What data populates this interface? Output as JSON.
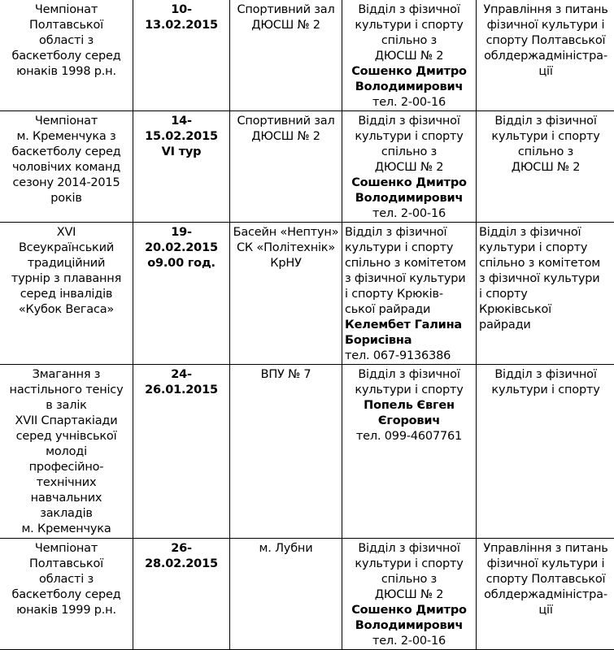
{
  "rows": [
    {
      "event": [
        {
          "t": "Чемпіонат"
        },
        {
          "t": "Полтавської"
        },
        {
          "t": "області з"
        },
        {
          "t": "баскетболу серед"
        },
        {
          "t": "юнаків 1998 р.н."
        }
      ],
      "date": [
        {
          "t": "10-",
          "b": true
        },
        {
          "t": "13.02.2015",
          "b": true
        }
      ],
      "place": [
        {
          "t": "Спортивний зал"
        },
        {
          "t": "ДЮСШ № 2"
        }
      ],
      "responsible": [
        {
          "t": "Відділ з фізичної"
        },
        {
          "t": "культури і спорту"
        },
        {
          "t": "спільно з"
        },
        {
          "t": "ДЮСШ № 2"
        },
        {
          "t": "Сошенко Дмитро",
          "b": true
        },
        {
          "t": "Володимирович",
          "b": true
        },
        {
          "t": "тел. 2-00-16"
        }
      ],
      "organizer": [
        {
          "t": "Управління з питань"
        },
        {
          "t": "фізичної культури і"
        },
        {
          "t": "спорту Полтавської"
        },
        {
          "t": "облдержадміністра-"
        },
        {
          "t": "ції"
        }
      ],
      "align": "c"
    },
    {
      "event": [
        {
          "t": "Чемпіонат"
        },
        {
          "t": "м. Кременчука з"
        },
        {
          "t": "баскетболу серед"
        },
        {
          "t": "чоловічих команд"
        },
        {
          "t": "сезону 2014-2015"
        },
        {
          "t": "років"
        }
      ],
      "date": [
        {
          "t": "14-",
          "b": true
        },
        {
          "t": "15.02.2015",
          "b": true
        },
        {
          "t": "VI тур",
          "b": true
        }
      ],
      "place": [
        {
          "t": "Спортивний зал"
        },
        {
          "t": "ДЮСШ № 2"
        }
      ],
      "responsible": [
        {
          "t": "Відділ з фізичної"
        },
        {
          "t": "культури і спорту"
        },
        {
          "t": "спільно з"
        },
        {
          "t": "ДЮСШ № 2"
        },
        {
          "t": "Сошенко Дмитро",
          "b": true
        },
        {
          "t": "Володимирович",
          "b": true
        },
        {
          "t": "тел. 2-00-16"
        }
      ],
      "organizer": [
        {
          "t": "Відділ з фізичної"
        },
        {
          "t": "культури і спорту"
        },
        {
          "t": "спільно з"
        },
        {
          "t": "ДЮСШ № 2"
        }
      ],
      "align": "c"
    },
    {
      "event": [
        {
          "t": "XVI"
        },
        {
          "t": "Всеукраїнський"
        },
        {
          "t": "традиційний"
        },
        {
          "t": "турнір з плавання"
        },
        {
          "t": "серед інвалідів"
        },
        {
          "t": "«Кубок Вегаса»"
        }
      ],
      "date": [
        {
          "t": "19-",
          "b": true
        },
        {
          "t": "20.02.2015",
          "b": true
        },
        {
          "t": "о9.00 год.",
          "b": true
        }
      ],
      "place": [
        {
          "t": "Басейн «Нептун»"
        },
        {
          "t": "СК «Політехнік»"
        },
        {
          "t": "КрНУ"
        }
      ],
      "responsible": [
        {
          "t": "Відділ з фізичної"
        },
        {
          "t": "культури і спорту"
        },
        {
          "t": "спільно з комітетом"
        },
        {
          "t": "з фізичної культури"
        },
        {
          "t": "і спорту Крюків-"
        },
        {
          "t": "ської райради"
        },
        {
          "t": "Келембет Галина",
          "b": true
        },
        {
          "t": "Борисівна",
          "b": true
        },
        {
          "t": "тел. 067-9136386"
        }
      ],
      "organizer": [
        {
          "t": "Відділ з фізичної"
        },
        {
          "t": "культури і спорту"
        },
        {
          "t": "спільно з комітетом"
        },
        {
          "t": "з фізичної культури"
        },
        {
          "t": "і спорту"
        },
        {
          "t": "Крюківської"
        },
        {
          "t": "райради"
        }
      ],
      "align": "l"
    },
    {
      "event": [
        {
          "t": "Змагання з"
        },
        {
          "t": "настільного тенісу"
        },
        {
          "t": "в залік"
        },
        {
          "t": "XVII Спартакіади"
        },
        {
          "t": "серед учнівської"
        },
        {
          "t": "молоді"
        },
        {
          "t": "професійно-"
        },
        {
          "t": "технічних"
        },
        {
          "t": "навчальних"
        },
        {
          "t": "закладів"
        },
        {
          "t": "м. Кременчука"
        }
      ],
      "date": [
        {
          "t": "24-",
          "b": true
        },
        {
          "t": "26.01.2015",
          "b": true
        }
      ],
      "place": [
        {
          "t": "ВПУ № 7"
        }
      ],
      "responsible": [
        {
          "t": "Відділ з фізичної"
        },
        {
          "t": "культури і спорту"
        },
        {
          "t": "Попель Євген",
          "b": true
        },
        {
          "t": "Єгорович",
          "b": true
        },
        {
          "t": "тел. 099-4607761"
        }
      ],
      "organizer": [
        {
          "t": "Відділ з фізичної"
        },
        {
          "t": "культури і спорту"
        }
      ],
      "align": "c"
    },
    {
      "event": [
        {
          "t": "Чемпіонат"
        },
        {
          "t": "Полтавської"
        },
        {
          "t": "області з"
        },
        {
          "t": "баскетболу серед"
        },
        {
          "t": "юнаків 1999 р.н."
        }
      ],
      "date": [
        {
          "t": "26-",
          "b": true
        },
        {
          "t": "28.02.2015",
          "b": true
        }
      ],
      "place": [
        {
          "t": "м. Лубни"
        }
      ],
      "responsible": [
        {
          "t": "Відділ з фізичної"
        },
        {
          "t": "культури і спорту"
        },
        {
          "t": "спільно з"
        },
        {
          "t": "ДЮСШ № 2"
        },
        {
          "t": "Сошенко Дмитро",
          "b": true
        },
        {
          "t": "Володимирович",
          "b": true
        },
        {
          "t": "тел. 2-00-16"
        }
      ],
      "organizer": [
        {
          "t": "Управління з питань"
        },
        {
          "t": "фізичної культури і"
        },
        {
          "t": "спорту Полтавської"
        },
        {
          "t": "облдержадміністра-"
        },
        {
          "t": "ції"
        }
      ],
      "align": "c"
    }
  ]
}
